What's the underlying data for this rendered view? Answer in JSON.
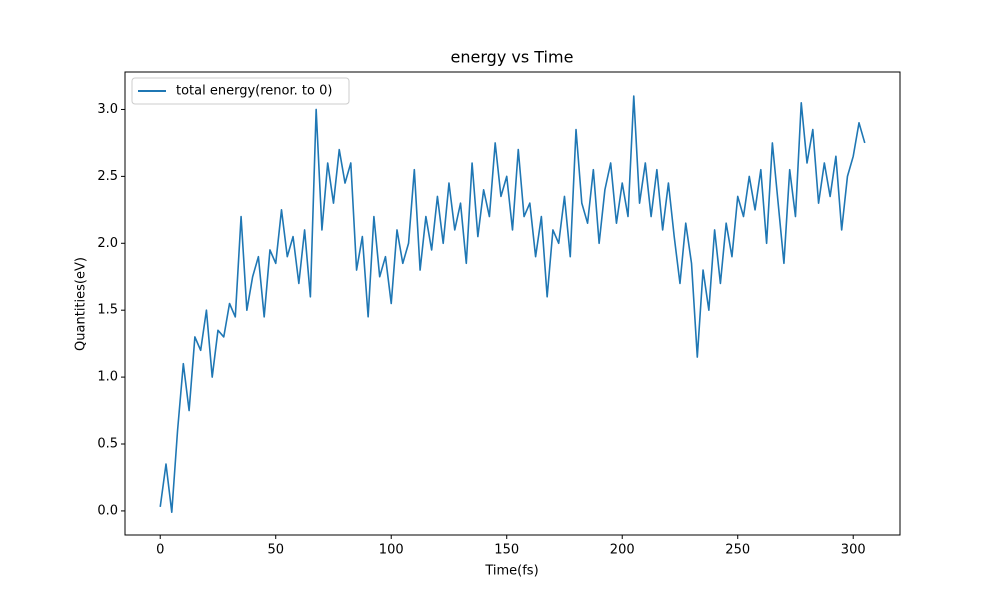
{
  "chart_data": {
    "type": "line",
    "title": "energy vs Time",
    "xlabel": "Time(fs)",
    "ylabel": "Quantities(eV)",
    "legend": "upper left",
    "grid": false,
    "xlim": [
      -15.25,
      320.25
    ],
    "ylim": [
      -0.18,
      3.28
    ],
    "xticks": [
      0,
      50,
      100,
      150,
      200,
      250,
      300
    ],
    "yticks": [
      {
        "value": 0,
        "label": "0.0"
      },
      0.5,
      {
        "value": 1,
        "label": "1.0"
      },
      1.5,
      {
        "value": 2,
        "label": "2.0"
      },
      2.5,
      {
        "value": 3,
        "label": "3.0"
      }
    ],
    "x": [
      0,
      2.5,
      5,
      7.5,
      10,
      12.5,
      15,
      17.5,
      20,
      22.5,
      25,
      27.5,
      30,
      32.5,
      35,
      37.5,
      40,
      42.5,
      45,
      47.5,
      50,
      52.5,
      55,
      57.5,
      60,
      62.5,
      65,
      67.5,
      70,
      72.5,
      75,
      77.5,
      80,
      82.5,
      85,
      87.5,
      90,
      92.5,
      95,
      97.5,
      100,
      102.5,
      105,
      107.5,
      110,
      112.5,
      115,
      117.5,
      120,
      122.5,
      125,
      127.5,
      130,
      132.5,
      135,
      137.5,
      140,
      142.5,
      145,
      147.5,
      150,
      152.5,
      155,
      157.5,
      160,
      162.5,
      165,
      167.5,
      170,
      172.5,
      175,
      177.5,
      180,
      182.5,
      185,
      187.5,
      190,
      192.5,
      195,
      197.5,
      200,
      202.5,
      205,
      207.5,
      210,
      212.5,
      215,
      217.5,
      220,
      222.5,
      225,
      227.5,
      230,
      232.5,
      235,
      237.5,
      240,
      242.5,
      245,
      247.5,
      250,
      252.5,
      255,
      257.5,
      260,
      262.5,
      265,
      267.5,
      270,
      272.5,
      275,
      277.5,
      280,
      282.5,
      285,
      287.5,
      290,
      292.5,
      295,
      297.5,
      300,
      302.5,
      305
    ],
    "series": [
      {
        "name": "total energy(renor. to 0)",
        "color": "#1f77b4",
        "values": [
          0.03,
          0.35,
          -0.01,
          0.6,
          1.1,
          0.75,
          1.3,
          1.2,
          1.5,
          1.0,
          1.35,
          1.3,
          1.55,
          1.45,
          2.2,
          1.5,
          1.75,
          1.9,
          1.45,
          1.95,
          1.85,
          2.25,
          1.9,
          2.05,
          1.7,
          2.1,
          1.6,
          3.0,
          2.1,
          2.6,
          2.3,
          2.7,
          2.45,
          2.6,
          1.8,
          2.05,
          1.45,
          2.2,
          1.75,
          1.9,
          1.55,
          2.1,
          1.85,
          2.0,
          2.55,
          1.8,
          2.2,
          1.95,
          2.35,
          2.0,
          2.45,
          2.1,
          2.3,
          1.85,
          2.6,
          2.05,
          2.4,
          2.2,
          2.75,
          2.35,
          2.5,
          2.1,
          2.7,
          2.2,
          2.3,
          1.9,
          2.2,
          1.6,
          2.1,
          2.0,
          2.35,
          1.9,
          2.85,
          2.3,
          2.15,
          2.55,
          2.0,
          2.4,
          2.6,
          2.15,
          2.45,
          2.2,
          3.1,
          2.3,
          2.6,
          2.2,
          2.55,
          2.1,
          2.45,
          2.05,
          1.7,
          2.15,
          1.85,
          1.15,
          1.8,
          1.5,
          2.1,
          1.7,
          2.15,
          1.9,
          2.35,
          2.2,
          2.5,
          2.25,
          2.55,
          2.0,
          2.75,
          2.3,
          1.85,
          2.55,
          2.2,
          3.05,
          2.6,
          2.85,
          2.3,
          2.6,
          2.35,
          2.65,
          2.1,
          2.5,
          2.65,
          2.9,
          2.75
        ]
      }
    ]
  }
}
